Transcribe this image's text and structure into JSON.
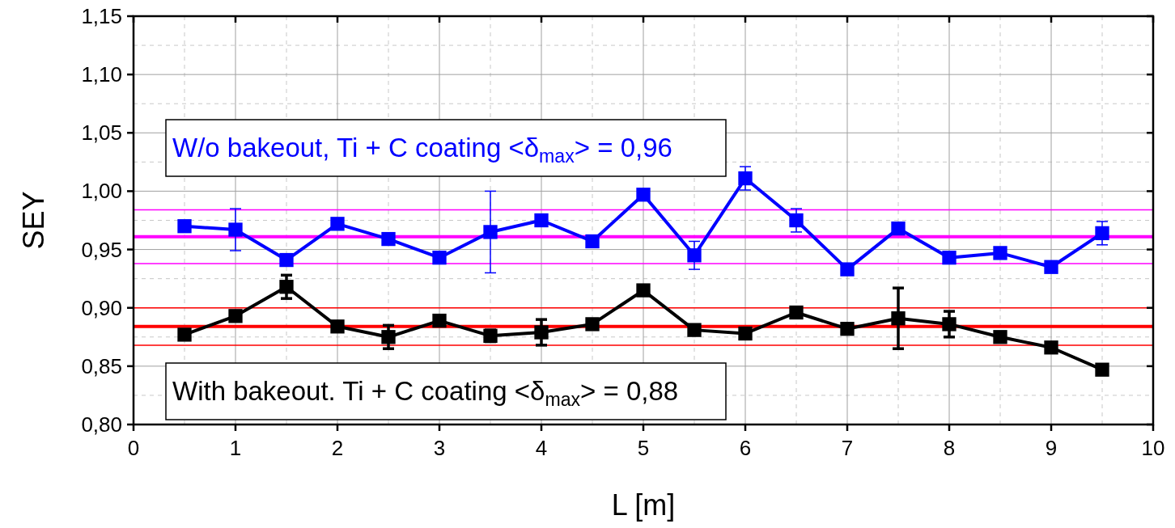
{
  "chart_data": {
    "type": "line",
    "xlabel": "L [m]",
    "ylabel": "SEY",
    "x": [
      0.5,
      1,
      1.5,
      2,
      2.5,
      3,
      3.5,
      4,
      4.5,
      5,
      5.5,
      6,
      6.5,
      7,
      7.5,
      8,
      8.5,
      9,
      9.5
    ],
    "series": [
      {
        "color": "#0000ff",
        "values": [
          0.97,
          0.967,
          0.941,
          0.972,
          0.959,
          0.943,
          0.965,
          0.975,
          0.957,
          0.997,
          0.945,
          1.011,
          0.975,
          0.933,
          0.968,
          0.943,
          0.947,
          0.935,
          0.964
        ],
        "errors": [
          null,
          0.018,
          null,
          null,
          null,
          null,
          0.035,
          null,
          null,
          null,
          0.012,
          0.01,
          0.01,
          null,
          null,
          null,
          null,
          null,
          0.01
        ]
      },
      {
        "color": "#000000",
        "values": [
          0.877,
          0.893,
          0.918,
          0.884,
          0.875,
          0.889,
          0.876,
          0.879,
          0.886,
          0.915,
          0.881,
          0.878,
          0.896,
          0.882,
          0.891,
          0.886,
          0.875,
          0.866,
          0.847
        ],
        "errors": [
          null,
          null,
          0.01,
          null,
          0.01,
          null,
          0.005,
          0.011,
          null,
          null,
          null,
          null,
          null,
          null,
          0.026,
          0.011,
          null,
          null,
          null
        ]
      }
    ],
    "xlim": [
      0,
      10
    ],
    "xticks": [
      0,
      1,
      2,
      3,
      4,
      5,
      6,
      7,
      8,
      9,
      10
    ],
    "ylim": [
      0.8,
      1.15
    ],
    "yticks": [
      {
        "value": 0.8,
        "label": "0,80"
      },
      {
        "value": 0.85,
        "label": "0,85"
      },
      {
        "value": 0.9,
        "label": "0,90"
      },
      {
        "value": 0.95,
        "label": "0,95"
      },
      {
        "value": 1.0,
        "label": "1,00"
      },
      {
        "value": 1.05,
        "label": "1,05"
      },
      {
        "value": 1.1,
        "label": "1,10"
      },
      {
        "value": 1.15,
        "label": "1,15"
      }
    ],
    "ref_lines": [
      {
        "axis": "y",
        "value": 0.961,
        "color": "#ff00ff",
        "line_style": "solid"
      },
      {
        "axis": "y",
        "value": 0.984,
        "color": "#ff00ff",
        "line_style": "solid"
      },
      {
        "axis": "y",
        "value": 0.938,
        "color": "#ff00ff",
        "line_style": "solid"
      },
      {
        "axis": "y",
        "value": 0.884,
        "color": "#ff0000",
        "line_style": "solid"
      },
      {
        "axis": "y",
        "value": 0.9,
        "color": "#ff0000",
        "line_style": "solid"
      },
      {
        "axis": "y",
        "value": 0.868,
        "color": "#ff0000",
        "line_style": "solid"
      }
    ],
    "annotations": [
      "W/o bakeout, Ti + C coating <δ$_{max}$> = 0,96",
      "With bakeout. Ti + C coating <δ$_{max}$> = 0,88"
    ],
    "grid": true,
    "marker": "square",
    "line_style": "solid"
  }
}
